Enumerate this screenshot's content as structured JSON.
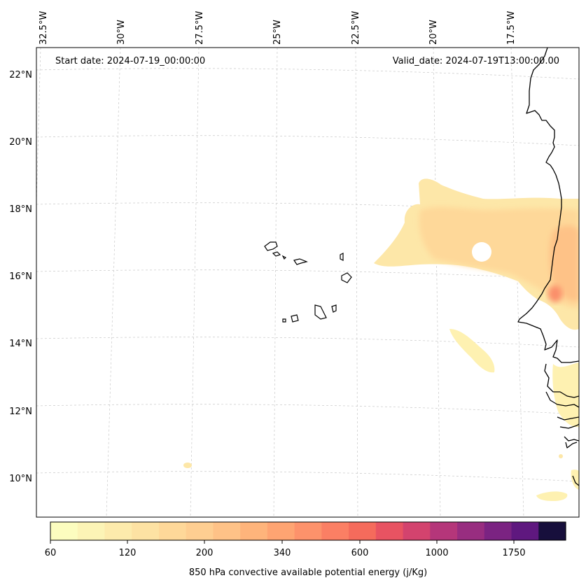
{
  "header": {
    "start_date": "Start date: 2024-07-19_00:00:00",
    "valid_date": "Valid_date: 2024-07-19T13:00:00.00"
  },
  "axes": {
    "lon_labels": [
      "32.5°W",
      "30°W",
      "27.5°W",
      "25°W",
      "22.5°W",
      "20°W",
      "17.5°W"
    ],
    "lat_labels": [
      "22°N",
      "20°N",
      "18°N",
      "16°N",
      "14°N",
      "12°N",
      "10°N"
    ]
  },
  "colorbar": {
    "tick_labels": [
      "60",
      "120",
      "200",
      "340",
      "600",
      "1000",
      "1750"
    ],
    "title": "850 hPa convective available potential energy (j/Kg)",
    "colors": [
      "#fcfdbf",
      "#fcf4b6",
      "#fdebac",
      "#fde2a3",
      "#fed899",
      "#fece91",
      "#fec287",
      "#feb47b",
      "#fea472",
      "#fd926b",
      "#fb7f64",
      "#f56b5c",
      "#e85362",
      "#d3436e",
      "#b5367a",
      "#982d80",
      "#7b2382",
      "#5f187f",
      "#170f3c"
    ]
  },
  "chart_data": {
    "type": "heatmap",
    "variable": "850 hPa convective available potential energy (j/Kg)",
    "units": "j/Kg",
    "levels": [
      60,
      120,
      200,
      340,
      600,
      1000,
      1750
    ],
    "lon_range": [
      "32.5°W",
      "17.5°W"
    ],
    "lat_range": [
      "10°N",
      "22°N"
    ],
    "grid": true
  }
}
